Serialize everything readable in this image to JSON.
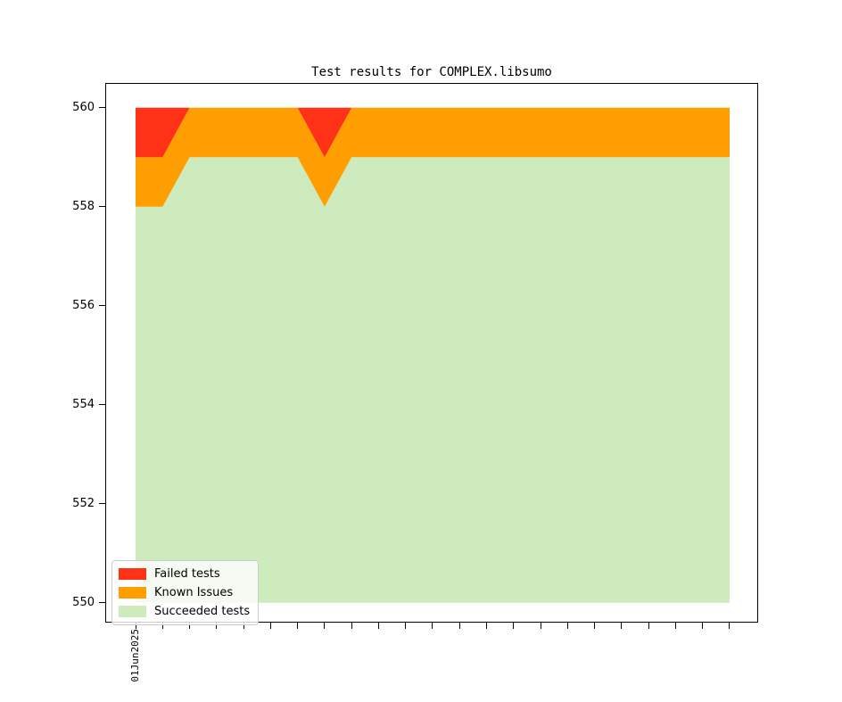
{
  "figure": {
    "background": "#ffffff",
    "axes_border_color": "#000000"
  },
  "chart_data": {
    "type": "area",
    "stacked": true,
    "title": "Test results for COMPLEX.libsumo",
    "x_count": 23,
    "x_first_tick_label": "01Jun2025",
    "x_unit": "day",
    "y_ticks": [
      550,
      552,
      554,
      556,
      558,
      560
    ],
    "ylim": [
      549.6,
      560.5
    ],
    "baseline": 550,
    "total_tests": 560,
    "grid": false,
    "legend_position": "lower left",
    "series": [
      {
        "name": "Failed tests",
        "color": "#ff3117",
        "values": [
          1,
          1,
          0,
          0,
          0,
          0,
          0,
          1,
          0,
          0,
          0,
          0,
          0,
          0,
          0,
          0,
          0,
          0,
          0,
          0,
          0,
          0,
          0
        ]
      },
      {
        "name": "Known Issues",
        "color": "#ff9e00",
        "values": [
          1,
          1,
          1,
          1,
          1,
          1,
          1,
          1,
          1,
          1,
          1,
          1,
          1,
          1,
          1,
          1,
          1,
          1,
          1,
          1,
          1,
          1,
          1
        ]
      },
      {
        "name": "Succeeded tests",
        "color": "#cdebbd",
        "values": [
          558,
          558,
          559,
          559,
          559,
          559,
          559,
          558,
          559,
          559,
          559,
          559,
          559,
          559,
          559,
          559,
          559,
          559,
          559,
          559,
          559,
          559,
          559
        ]
      }
    ]
  },
  "legend": {
    "items": [
      {
        "label": "Failed tests",
        "color": "#ff3117"
      },
      {
        "label": "Known Issues",
        "color": "#ff9e00"
      },
      {
        "label": "Succeeded tests",
        "color": "#cdebbd"
      }
    ]
  }
}
